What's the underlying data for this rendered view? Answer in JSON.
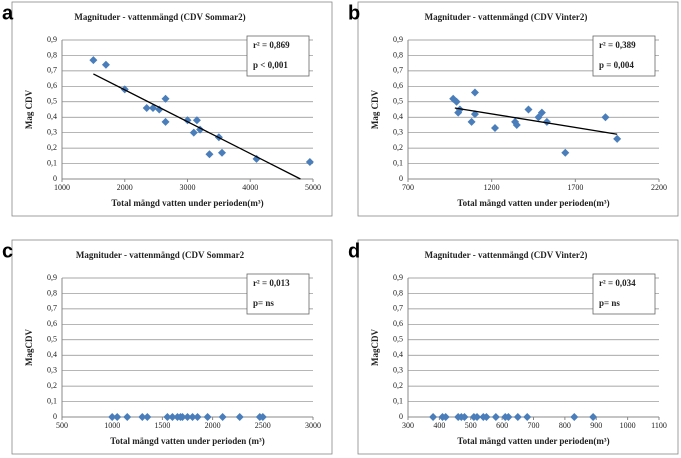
{
  "chart_data": [
    {
      "type": "scatter",
      "panel_label": "a",
      "title": "Magnituder - vattenmängd  (CDV Sommar2)",
      "xlabel": "Total mängd vatten under perioden(m³)",
      "ylabel": "Mag CDV",
      "color": "#4a7ebb",
      "x": [
        1500,
        1700,
        2000,
        2350,
        2450,
        2550,
        2650,
        2650,
        3000,
        3150,
        3100,
        3200,
        3350,
        3500,
        3550,
        4100,
        4950
      ],
      "values": [
        0.77,
        0.74,
        0.58,
        0.46,
        0.46,
        0.45,
        0.52,
        0.37,
        0.38,
        0.38,
        0.3,
        0.32,
        0.16,
        0.27,
        0.17,
        0.13,
        0.11
      ],
      "trendline": {
        "x": [
          1500,
          4800
        ],
        "y": [
          0.68,
          0
        ]
      },
      "annotations": [
        "r² = 0,869",
        "p < 0,001"
      ],
      "xlim": [
        1000,
        5000
      ],
      "xticks": [
        1000,
        2000,
        3000,
        4000,
        5000
      ],
      "ylim": [
        0,
        0.9
      ],
      "yticks": [
        0,
        {
          "value": 0.1,
          "label": "0,1"
        },
        {
          "value": 0.2,
          "label": "0,2"
        },
        {
          "value": 0.3,
          "label": "0,3"
        },
        {
          "value": 0.4,
          "label": "0,4"
        },
        {
          "value": 0.5,
          "label": "0,5"
        },
        {
          "value": 0.6,
          "label": "0,6"
        },
        {
          "value": 0.7,
          "label": "0,7"
        },
        {
          "value": 0.8,
          "label": "0,8"
        },
        {
          "value": 0.9,
          "label": "0,9"
        }
      ],
      "grid": true
    },
    {
      "type": "scatter",
      "panel_label": "b",
      "title": "Magnituder - vattenmängd  (CDV Vinter2)",
      "xlabel": "Total mängd vatten under perioden(m³)",
      "ylabel": "Mag CDV",
      "color": "#4a7ebb",
      "x": [
        970,
        990,
        1000,
        1010,
        1080,
        1100,
        1100,
        1220,
        1340,
        1350,
        1420,
        1480,
        1500,
        1530,
        1640,
        1880,
        1950
      ],
      "values": [
        0.52,
        0.5,
        0.43,
        0.45,
        0.37,
        0.56,
        0.42,
        0.33,
        0.37,
        0.35,
        0.45,
        0.4,
        0.43,
        0.37,
        0.17,
        0.4,
        0.26
      ],
      "trendline": {
        "x": [
          980,
          1950
        ],
        "y": [
          0.46,
          0.29
        ]
      },
      "annotations": [
        "r² = 0,389",
        "p = 0,004"
      ],
      "xlim": [
        700,
        2200
      ],
      "xticks": [
        700,
        1200,
        1700,
        2200
      ],
      "ylim": [
        0,
        0.9
      ],
      "yticks": [
        0,
        {
          "value": 0.1,
          "label": "0,1"
        },
        {
          "value": 0.2,
          "label": "0,2"
        },
        {
          "value": 0.3,
          "label": "0,3"
        },
        {
          "value": 0.4,
          "label": "0,4"
        },
        {
          "value": 0.5,
          "label": "0,5"
        },
        {
          "value": 0.6,
          "label": "0,6"
        },
        {
          "value": 0.7,
          "label": "0,7"
        },
        {
          "value": 0.8,
          "label": "0,8"
        },
        {
          "value": 0.9,
          "label": "0,9"
        }
      ],
      "grid": true
    },
    {
      "type": "scatter",
      "panel_label": "c",
      "title": "Magnituder - vattenmängd (CDV Sommar2",
      "xlabel": "Total mängd vatten under perioden (m³)",
      "ylabel": "MagCDV",
      "color": "#4a7ebb",
      "x": [
        1000,
        1050,
        1150,
        1300,
        1350,
        1550,
        1600,
        1650,
        1680,
        1700,
        1750,
        1800,
        1850,
        1950,
        2100,
        2270,
        2470,
        2500
      ],
      "values": [
        0,
        0,
        0,
        0,
        0,
        0,
        0,
        0,
        0,
        0,
        0,
        0,
        0,
        0,
        0,
        0,
        0,
        0
      ],
      "annotations": [
        "r² = 0,013",
        "p= ns"
      ],
      "xlim": [
        500,
        3000
      ],
      "xticks": [
        500,
        1000,
        1500,
        2000,
        2500,
        3000
      ],
      "ylim": [
        0,
        0.9
      ],
      "yticks": [
        0,
        {
          "value": 0.1,
          "label": "0,1"
        },
        {
          "value": 0.2,
          "label": "0,2"
        },
        {
          "value": 0.3,
          "label": "0,3"
        },
        {
          "value": 0.4,
          "label": "0,4"
        },
        {
          "value": 0.5,
          "label": "0,5"
        },
        {
          "value": 0.6,
          "label": "0,6"
        },
        {
          "value": 0.7,
          "label": "0,7"
        },
        {
          "value": 0.8,
          "label": "0,8"
        },
        {
          "value": 0.9,
          "label": "0,9"
        }
      ],
      "grid": true
    },
    {
      "type": "scatter",
      "panel_label": "d",
      "title": "Magnituder - vattenmängd (CDV Vinter2)",
      "xlabel": "Total mängd vatten under perioden(m³)",
      "ylabel": "MagCDV",
      "color": "#4a7ebb",
      "x": [
        380,
        410,
        420,
        460,
        470,
        480,
        510,
        520,
        540,
        550,
        580,
        610,
        620,
        650,
        680,
        830,
        890
      ],
      "values": [
        0,
        0,
        0,
        0,
        0,
        0,
        0,
        0,
        0,
        0,
        0,
        0,
        0,
        0,
        0,
        0,
        0
      ],
      "annotations": [
        "r² = 0,034",
        "p= ns"
      ],
      "xlim": [
        300,
        1100
      ],
      "xticks": [
        300,
        400,
        500,
        600,
        700,
        800,
        900,
        1000,
        1100
      ],
      "ylim": [
        0,
        0.9
      ],
      "yticks": [
        0,
        {
          "value": 0.1,
          "label": "0,1"
        },
        {
          "value": 0.2,
          "label": "0,2"
        },
        {
          "value": 0.3,
          "label": "0,3"
        },
        {
          "value": 0.4,
          "label": "0,4"
        },
        {
          "value": 0.5,
          "label": "0,5"
        },
        {
          "value": 0.6,
          "label": "0,6"
        },
        {
          "value": 0.7,
          "label": "0,7"
        },
        {
          "value": 0.8,
          "label": "0,8"
        },
        {
          "value": 0.9,
          "label": "0,9"
        }
      ],
      "grid": true
    }
  ]
}
